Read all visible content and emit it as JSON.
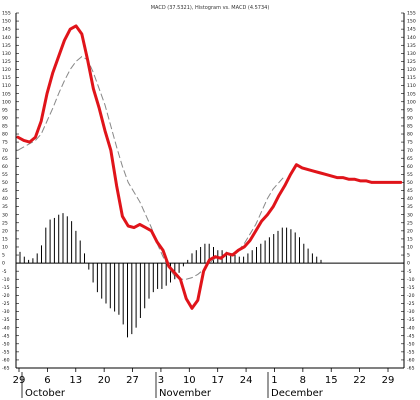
{
  "chart_data": {
    "type": "line",
    "title": "MACD (37.5321), Histogram vs. MACD (4.5734)",
    "xlabel": "",
    "ylabel": "",
    "ylim": [
      -65,
      155
    ],
    "yticks": [
      -65,
      -60,
      -55,
      -50,
      -45,
      -40,
      -35,
      -30,
      -25,
      -20,
      -15,
      -10,
      -5,
      0,
      5,
      10,
      15,
      20,
      25,
      30,
      35,
      40,
      45,
      50,
      55,
      60,
      65,
      70,
      75,
      80,
      85,
      90,
      95,
      100,
      105,
      110,
      115,
      120,
      125,
      130,
      135,
      140,
      145,
      150,
      155
    ],
    "x_tick_labels": [
      "29",
      "6",
      "13",
      "20",
      "27",
      "3",
      "10",
      "17",
      "24",
      "1",
      "8",
      "15",
      "22",
      "29"
    ],
    "month_labels": [
      "October",
      "November",
      "December"
    ],
    "grid": false,
    "series": [
      {
        "role": "macd",
        "color": "#e0141a",
        "x": [
          0,
          1,
          2,
          3,
          4,
          5,
          6,
          7,
          8,
          9,
          10,
          11,
          12,
          13,
          14,
          15,
          16,
          17,
          18,
          19,
          20,
          21,
          22,
          23,
          24,
          25,
          26,
          27,
          28,
          29,
          30,
          31,
          32,
          33,
          34,
          35,
          36,
          37,
          38,
          39,
          40,
          41,
          42,
          43,
          44,
          45,
          46,
          47,
          48,
          49,
          50,
          51,
          52,
          53,
          54,
          55,
          56,
          57,
          58,
          59,
          60,
          61,
          62,
          63,
          64,
          65,
          66
        ],
        "values": [
          78,
          76,
          75,
          78,
          88,
          105,
          118,
          128,
          138,
          145,
          147,
          142,
          126,
          108,
          96,
          82,
          70,
          48,
          29,
          23,
          22,
          24,
          22,
          20,
          13,
          8,
          -2,
          -6,
          -10,
          -22,
          -28,
          -23,
          -5,
          2,
          4,
          3,
          6,
          5,
          8,
          10,
          14,
          20,
          26,
          30,
          35,
          42,
          48,
          55,
          61,
          59,
          58,
          57,
          56,
          55,
          54,
          53,
          53,
          52,
          52,
          51,
          51,
          50,
          50,
          50,
          50,
          50,
          50
        ]
      },
      {
        "role": "signal",
        "color": "#888888",
        "x": [
          0,
          1,
          2,
          3,
          4,
          5,
          6,
          7,
          8,
          9,
          10,
          11,
          12,
          13,
          14,
          15,
          16,
          17,
          18,
          19,
          20,
          21,
          22,
          23,
          24,
          25,
          26,
          27,
          28,
          29,
          30,
          31,
          32,
          33,
          34,
          35,
          36,
          37,
          38,
          39,
          40,
          41,
          42,
          43,
          44,
          45,
          46
        ],
        "values": [
          70,
          72,
          74,
          76,
          80,
          88,
          96,
          105,
          113,
          120,
          125,
          128,
          126,
          118,
          108,
          98,
          85,
          72,
          60,
          50,
          44,
          38,
          30,
          22,
          12,
          4,
          -3,
          -8,
          -10,
          -10,
          -9,
          -7,
          -4,
          0,
          3,
          4,
          5,
          6,
          8,
          12,
          18,
          24,
          32,
          40,
          46,
          50,
          54
        ]
      },
      {
        "role": "histogram",
        "color": "#000000",
        "x": [
          0,
          1,
          2,
          3,
          4,
          5,
          6,
          7,
          8,
          9,
          10,
          11,
          12,
          13,
          14,
          15,
          16,
          17,
          18,
          19,
          20,
          21,
          22,
          23,
          24,
          25,
          26,
          27,
          28,
          29,
          30,
          31,
          32,
          33,
          34,
          35,
          36,
          37,
          38,
          39,
          40,
          41,
          42,
          43,
          44,
          45,
          46,
          47,
          48,
          49,
          50,
          51,
          52,
          53,
          54,
          55,
          56,
          57,
          58,
          59,
          60,
          61,
          62,
          63,
          64,
          65,
          66,
          67,
          68,
          69,
          70,
          71,
          72,
          73,
          74,
          75,
          76,
          77,
          78,
          79,
          80,
          81,
          82,
          83,
          84,
          85,
          86,
          87,
          88,
          89,
          90
        ],
        "values": [
          7,
          4,
          2,
          3,
          6,
          11,
          22,
          27,
          28,
          30,
          31,
          29,
          26,
          20,
          14,
          6,
          -4,
          -12,
          -18,
          -22,
          -25,
          -28,
          -30,
          -32,
          -38,
          -46,
          -44,
          -40,
          -34,
          -28,
          -22,
          -18,
          -16,
          -16,
          -14,
          -12,
          -10,
          -6,
          -2,
          2,
          6,
          8,
          10,
          12,
          12,
          10,
          8,
          8,
          7,
          6,
          5,
          4,
          4,
          6,
          8,
          10,
          12,
          14,
          16,
          18,
          20,
          22,
          22,
          21,
          19,
          16,
          12,
          9,
          6,
          4,
          2,
          0,
          0,
          0,
          0,
          0,
          0,
          0,
          0,
          0,
          0,
          0,
          0,
          0,
          0,
          0,
          0,
          0,
          0,
          0,
          0
        ]
      }
    ]
  }
}
